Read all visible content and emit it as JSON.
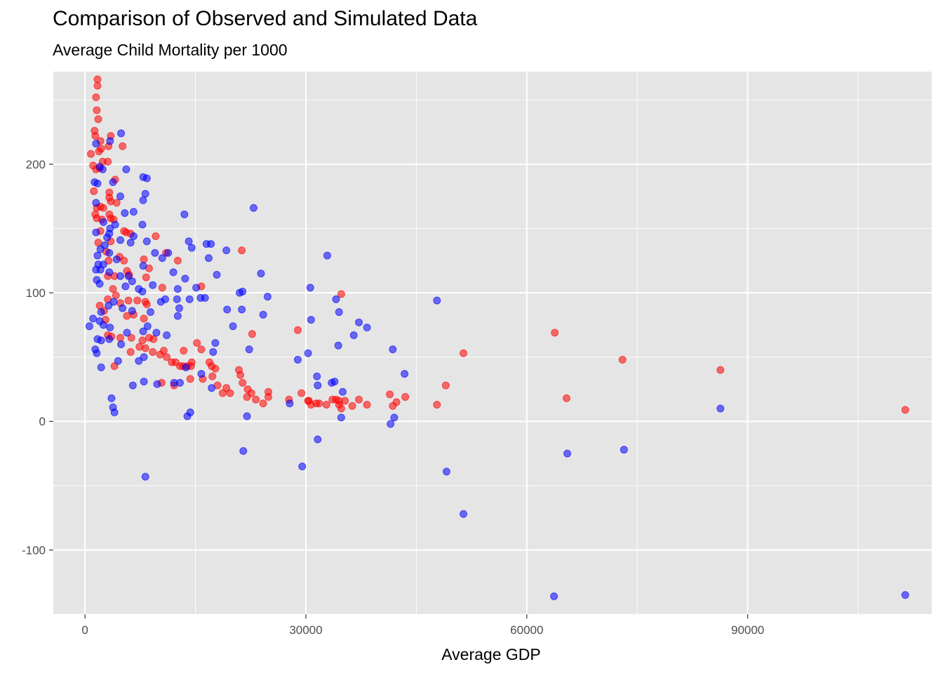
{
  "chart_data": {
    "type": "scatter",
    "title": "Comparison of Observed and Simulated Data",
    "subtitle": "Average Child Mortality per 1000",
    "xlabel": "Average GDP",
    "ylabel": "",
    "xlim": [
      -4300,
      115000
    ],
    "ylim": [
      -150,
      272
    ],
    "x_ticks": [
      0,
      30000,
      60000,
      90000
    ],
    "x_tick_labels": [
      "0",
      "30000",
      "60000",
      "90000"
    ],
    "y_ticks": [
      -100,
      0,
      100,
      200
    ],
    "y_tick_labels": [
      "-100",
      "0",
      "100",
      "200"
    ],
    "grid": true,
    "legend": "none",
    "colors": {
      "panel": "#e5e5e5",
      "grid": "#ffffff",
      "series_1": "#ff0000",
      "series_2": "#0000ff"
    },
    "series": [
      {
        "color": "#ff0000",
        "points": [
          [
            1700,
            266
          ],
          [
            1700,
            261
          ],
          [
            1500,
            252
          ],
          [
            1600,
            242
          ],
          [
            1800,
            235
          ],
          [
            1300,
            226
          ],
          [
            1400,
            222
          ],
          [
            2100,
            218
          ],
          [
            2200,
            212
          ],
          [
            1900,
            210
          ],
          [
            800,
            208
          ],
          [
            3200,
            214
          ],
          [
            3500,
            222
          ],
          [
            5100,
            214
          ],
          [
            1100,
            199
          ],
          [
            1500,
            196
          ],
          [
            2400,
            202
          ],
          [
            3100,
            202
          ],
          [
            2000,
            197
          ],
          [
            4100,
            188
          ],
          [
            3300,
            178
          ],
          [
            1200,
            179
          ],
          [
            3300,
            174
          ],
          [
            3500,
            171
          ],
          [
            4300,
            170
          ],
          [
            1600,
            166
          ],
          [
            2100,
            167
          ],
          [
            2500,
            166
          ],
          [
            1400,
            161
          ],
          [
            1600,
            158
          ],
          [
            2300,
            157
          ],
          [
            3300,
            161
          ],
          [
            3500,
            158
          ],
          [
            3900,
            157
          ],
          [
            5300,
            148
          ],
          [
            5600,
            147
          ],
          [
            6200,
            146
          ],
          [
            9600,
            144
          ],
          [
            2100,
            148
          ],
          [
            3500,
            140
          ],
          [
            1800,
            139
          ],
          [
            2900,
            132
          ],
          [
            4700,
            128
          ],
          [
            5300,
            125
          ],
          [
            6000,
            114
          ],
          [
            12600,
            125
          ],
          [
            11000,
            131
          ],
          [
            21300,
            133
          ],
          [
            8000,
            126
          ],
          [
            8300,
            112
          ],
          [
            8700,
            119
          ],
          [
            3200,
            125
          ],
          [
            3100,
            113
          ],
          [
            4000,
            113
          ],
          [
            5700,
            117
          ],
          [
            10500,
            104
          ],
          [
            15800,
            105
          ],
          [
            34800,
            99
          ],
          [
            3800,
            103
          ],
          [
            4200,
            98
          ],
          [
            5900,
            94
          ],
          [
            7100,
            94
          ],
          [
            8200,
            93
          ],
          [
            8400,
            91
          ],
          [
            3100,
            95
          ],
          [
            4800,
            92
          ],
          [
            2000,
            90
          ],
          [
            2600,
            86
          ],
          [
            2800,
            79
          ],
          [
            5700,
            82
          ],
          [
            6600,
            83
          ],
          [
            8000,
            80
          ],
          [
            3100,
            67
          ],
          [
            3600,
            66
          ],
          [
            4800,
            65
          ],
          [
            6300,
            65
          ],
          [
            7800,
            63
          ],
          [
            8700,
            65
          ],
          [
            8200,
            57
          ],
          [
            9200,
            54
          ],
          [
            10700,
            55
          ],
          [
            13400,
            55
          ],
          [
            7400,
            58
          ],
          [
            9300,
            64
          ],
          [
            10200,
            52
          ],
          [
            11100,
            50
          ],
          [
            11800,
            46
          ],
          [
            12300,
            46
          ],
          [
            12900,
            43
          ],
          [
            13300,
            43
          ],
          [
            13900,
            43
          ],
          [
            14500,
            46
          ],
          [
            14400,
            43
          ],
          [
            15200,
            61
          ],
          [
            15800,
            56
          ],
          [
            16900,
            46
          ],
          [
            17200,
            43
          ],
          [
            17700,
            41
          ],
          [
            16000,
            33
          ],
          [
            14300,
            33
          ],
          [
            17300,
            35
          ],
          [
            18000,
            28
          ],
          [
            19200,
            26
          ],
          [
            19700,
            22
          ],
          [
            20900,
            40
          ],
          [
            21100,
            36
          ],
          [
            21400,
            30
          ],
          [
            22100,
            25
          ],
          [
            22600,
            22
          ],
          [
            22000,
            19
          ],
          [
            23200,
            17
          ],
          [
            24200,
            14
          ],
          [
            24900,
            23
          ],
          [
            24900,
            19
          ],
          [
            27700,
            17
          ],
          [
            29400,
            22
          ],
          [
            30300,
            16
          ],
          [
            30700,
            13
          ],
          [
            31400,
            14
          ],
          [
            31800,
            14
          ],
          [
            32800,
            13
          ],
          [
            33600,
            17
          ],
          [
            34100,
            17
          ],
          [
            34500,
            16
          ],
          [
            34800,
            10
          ],
          [
            35300,
            16
          ],
          [
            36300,
            12
          ],
          [
            37200,
            17
          ],
          [
            38300,
            13
          ],
          [
            41400,
            21
          ],
          [
            41800,
            12
          ],
          [
            42300,
            15
          ],
          [
            43500,
            19
          ],
          [
            47800,
            13
          ],
          [
            49000,
            28
          ],
          [
            51400,
            53
          ],
          [
            63800,
            69
          ],
          [
            65400,
            18
          ],
          [
            73000,
            48
          ],
          [
            86300,
            40
          ],
          [
            111400,
            9
          ],
          [
            28900,
            71
          ],
          [
            22700,
            68
          ],
          [
            6200,
            54
          ],
          [
            4000,
            43
          ],
          [
            10400,
            30
          ],
          [
            12100,
            28
          ],
          [
            18700,
            22
          ],
          [
            30400,
            16
          ],
          [
            34500,
            13
          ]
        ]
      },
      {
        "color": "#0000ff",
        "points": [
          [
            4900,
            224
          ],
          [
            1500,
            216
          ],
          [
            3400,
            218
          ],
          [
            2000,
            198
          ],
          [
            2400,
            196
          ],
          [
            5600,
            196
          ],
          [
            7900,
            190
          ],
          [
            3800,
            186
          ],
          [
            8400,
            189
          ],
          [
            1300,
            186
          ],
          [
            1700,
            185
          ],
          [
            4800,
            175
          ],
          [
            8200,
            177
          ],
          [
            1500,
            170
          ],
          [
            7900,
            172
          ],
          [
            22900,
            166
          ],
          [
            13500,
            161
          ],
          [
            5400,
            162
          ],
          [
            6600,
            163
          ],
          [
            2500,
            155
          ],
          [
            4100,
            153
          ],
          [
            3400,
            150
          ],
          [
            1500,
            147
          ],
          [
            7800,
            153
          ],
          [
            3000,
            143
          ],
          [
            3300,
            146
          ],
          [
            4800,
            141
          ],
          [
            6600,
            144
          ],
          [
            8400,
            140
          ],
          [
            14100,
            140
          ],
          [
            16500,
            138
          ],
          [
            17100,
            138
          ],
          [
            14500,
            135
          ],
          [
            19200,
            133
          ],
          [
            2100,
            134
          ],
          [
            2700,
            137
          ],
          [
            3300,
            131
          ],
          [
            6200,
            139
          ],
          [
            9500,
            131
          ],
          [
            10500,
            127
          ],
          [
            11300,
            131
          ],
          [
            16800,
            127
          ],
          [
            32900,
            129
          ],
          [
            1700,
            129
          ],
          [
            1800,
            122
          ],
          [
            1500,
            118
          ],
          [
            2100,
            118
          ],
          [
            2500,
            122
          ],
          [
            4300,
            126
          ],
          [
            5900,
            113
          ],
          [
            7900,
            121
          ],
          [
            12000,
            116
          ],
          [
            12600,
            103
          ],
          [
            13600,
            111
          ],
          [
            15100,
            104
          ],
          [
            17900,
            114
          ],
          [
            23900,
            115
          ],
          [
            30600,
            104
          ],
          [
            34100,
            95
          ],
          [
            47800,
            94
          ],
          [
            1600,
            110
          ],
          [
            2000,
            107
          ],
          [
            3300,
            116
          ],
          [
            4800,
            113
          ],
          [
            5500,
            105
          ],
          [
            6400,
            109
          ],
          [
            7300,
            103
          ],
          [
            7800,
            101
          ],
          [
            9200,
            106
          ],
          [
            10900,
            95
          ],
          [
            12500,
            95
          ],
          [
            14200,
            95
          ],
          [
            15700,
            96
          ],
          [
            19300,
            87
          ],
          [
            21000,
            100
          ],
          [
            21400,
            101
          ],
          [
            24800,
            97
          ],
          [
            21300,
            87
          ],
          [
            24200,
            83
          ],
          [
            34500,
            85
          ],
          [
            37200,
            77
          ],
          [
            38300,
            73
          ],
          [
            36500,
            67
          ],
          [
            30700,
            79
          ],
          [
            2200,
            85
          ],
          [
            3200,
            90
          ],
          [
            3900,
            93
          ],
          [
            5100,
            88
          ],
          [
            6400,
            86
          ],
          [
            8900,
            85
          ],
          [
            10300,
            93
          ],
          [
            12800,
            88
          ],
          [
            16300,
            96
          ],
          [
            20100,
            74
          ],
          [
            17700,
            61
          ],
          [
            1100,
            80
          ],
          [
            2000,
            78
          ],
          [
            2500,
            75
          ],
          [
            3400,
            73
          ],
          [
            5700,
            69
          ],
          [
            7900,
            70
          ],
          [
            8500,
            74
          ],
          [
            9700,
            69
          ],
          [
            11100,
            67
          ],
          [
            12600,
            82
          ],
          [
            600,
            74
          ],
          [
            1700,
            64
          ],
          [
            2200,
            63
          ],
          [
            3300,
            64
          ],
          [
            4900,
            60
          ],
          [
            8000,
            50
          ],
          [
            1400,
            56
          ],
          [
            1600,
            53
          ],
          [
            4500,
            47
          ],
          [
            7300,
            47
          ],
          [
            9800,
            29
          ],
          [
            12100,
            30
          ],
          [
            12900,
            30
          ],
          [
            13700,
            42
          ],
          [
            15800,
            37
          ],
          [
            17200,
            26
          ],
          [
            17400,
            54
          ],
          [
            22300,
            56
          ],
          [
            27800,
            14
          ],
          [
            28900,
            48
          ],
          [
            30300,
            53
          ],
          [
            31500,
            35
          ],
          [
            31600,
            28
          ],
          [
            33500,
            30
          ],
          [
            33900,
            31
          ],
          [
            34400,
            59
          ],
          [
            35000,
            23
          ],
          [
            34800,
            3
          ],
          [
            41800,
            56
          ],
          [
            41500,
            -2
          ],
          [
            42000,
            3
          ],
          [
            43400,
            37
          ],
          [
            2200,
            42
          ],
          [
            6500,
            28
          ],
          [
            8000,
            31
          ],
          [
            3600,
            18
          ],
          [
            3800,
            11
          ],
          [
            4000,
            7
          ],
          [
            13900,
            4
          ],
          [
            14300,
            7
          ],
          [
            22000,
            4
          ],
          [
            21500,
            -23
          ],
          [
            29500,
            -35
          ],
          [
            31600,
            -14
          ],
          [
            49100,
            -39
          ],
          [
            51400,
            -72
          ],
          [
            65500,
            -25
          ],
          [
            73200,
            -22
          ],
          [
            86300,
            10
          ],
          [
            63700,
            -136
          ],
          [
            111400,
            -135
          ],
          [
            8200,
            -43
          ]
        ]
      }
    ]
  }
}
